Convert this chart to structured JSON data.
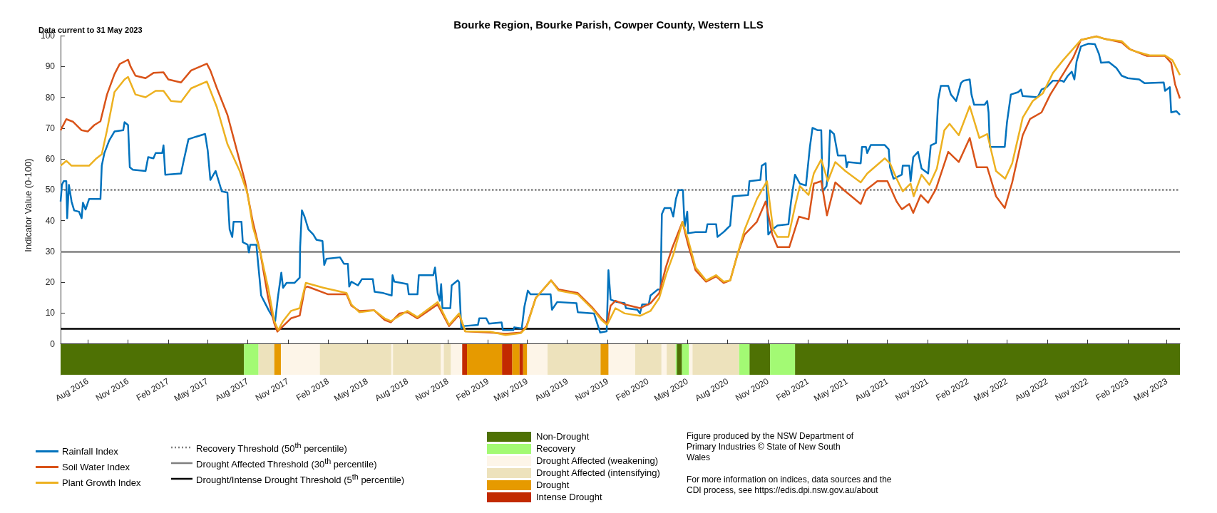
{
  "chart_data": {
    "type": "line",
    "title": "Bourke Region, Bourke Parish, Cowper County, Western LLS",
    "subtitle": "Data current to 31 May 2023",
    "ylabel": "Indicator Value (0-100)",
    "xlim": [
      "2016-05-31",
      "2023-05-31"
    ],
    "xticks": [
      {
        "value": "2016-08-01",
        "label": "Aug 2016"
      },
      {
        "value": "2016-11-01",
        "label": "Nov 2016"
      },
      {
        "value": "2017-02-01",
        "label": "Feb 2017"
      },
      {
        "value": "2017-05-01",
        "label": "May 2017"
      },
      {
        "value": "2017-08-01",
        "label": "Aug 2017"
      },
      {
        "value": "2017-11-01",
        "label": "Nov 2017"
      },
      {
        "value": "2018-02-01",
        "label": "Feb 2018"
      },
      {
        "value": "2018-05-01",
        "label": "May 2018"
      },
      {
        "value": "2018-08-01",
        "label": "Aug 2018"
      },
      {
        "value": "2018-11-01",
        "label": "Nov 2018"
      },
      {
        "value": "2019-02-01",
        "label": "Feb 2019"
      },
      {
        "value": "2019-05-01",
        "label": "May 2019"
      },
      {
        "value": "2019-08-01",
        "label": "Aug 2019"
      },
      {
        "value": "2019-11-01",
        "label": "Nov 2019"
      },
      {
        "value": "2020-02-01",
        "label": "Feb 2020"
      },
      {
        "value": "2020-05-01",
        "label": "May 2020"
      },
      {
        "value": "2020-08-01",
        "label": "Aug 2020"
      },
      {
        "value": "2020-11-01",
        "label": "Nov 2020"
      },
      {
        "value": "2021-02-01",
        "label": "Feb 2021"
      },
      {
        "value": "2021-05-01",
        "label": "May 2021"
      },
      {
        "value": "2021-08-01",
        "label": "Aug 2021"
      },
      {
        "value": "2021-11-01",
        "label": "Nov 2021"
      },
      {
        "value": "2022-02-01",
        "label": "Feb 2022"
      },
      {
        "value": "2022-05-01",
        "label": "May 2022"
      },
      {
        "value": "2022-08-01",
        "label": "Aug 2022"
      },
      {
        "value": "2022-11-01",
        "label": "Nov 2022"
      },
      {
        "value": "2023-02-01",
        "label": "Feb 2023"
      },
      {
        "value": "2023-05-01",
        "label": "May 2023"
      }
    ],
    "ylim": [
      -10,
      100
    ],
    "yticks": [
      {
        "value": -5,
        "label": null
      },
      0,
      10,
      20,
      30,
      40,
      50,
      60,
      70,
      80,
      90,
      100
    ],
    "grid": false,
    "marker": "none",
    "legend": "bottom left",
    "series": [
      {
        "name": "Rainfall Index",
        "color": "#0072bd",
        "x": [
          "2016-05-31",
          "2016-06-03",
          "2016-06-07",
          "2016-06-13",
          "2016-06-15",
          "2016-06-19",
          "2016-06-25",
          "2016-07-01",
          "2016-07-12",
          "2016-07-18",
          "2016-07-21",
          "2016-07-27",
          "2016-08-04",
          "2016-08-30",
          "2016-09-02",
          "2016-09-08",
          "2016-09-19",
          "2016-10-01",
          "2016-10-21",
          "2016-10-24",
          "2016-11-01",
          "2016-11-05",
          "2016-11-12",
          "2016-12-11",
          "2016-12-17",
          "2016-12-29",
          "2017-01-03",
          "2017-01-18",
          "2017-01-21",
          "2017-01-25",
          "2017-03-02",
          "2017-03-08",
          "2017-03-19",
          "2017-04-05",
          "2017-04-26",
          "2017-05-02",
          "2017-05-08",
          "2017-05-20",
          "2017-06-03",
          "2017-06-16",
          "2017-06-21",
          "2017-06-27",
          "2017-06-30",
          "2017-07-18",
          "2017-07-21",
          "2017-08-01",
          "2017-08-04",
          "2017-08-07",
          "2017-08-21",
          "2017-09-01",
          "2017-09-10",
          "2017-09-19",
          "2017-10-03",
          "2017-10-09",
          "2017-10-17",
          "2017-10-21",
          "2017-10-29",
          "2017-11-16",
          "2017-11-28",
          "2017-11-29",
          "2017-12-03",
          "2017-12-09",
          "2017-12-18",
          "2017-12-29",
          "2018-01-05",
          "2018-01-19",
          "2018-01-23",
          "2018-01-28",
          "2018-02-28",
          "2018-03-09",
          "2018-03-18",
          "2018-03-21",
          "2018-03-26",
          "2018-04-10",
          "2018-04-19",
          "2018-05-14",
          "2018-05-18",
          "2018-06-07",
          "2018-06-26",
          "2018-06-28",
          "2018-07-02",
          "2018-08-01",
          "2018-08-04",
          "2018-08-24",
          "2018-08-27",
          "2018-09-29",
          "2018-10-03",
          "2018-10-09",
          "2018-10-14",
          "2018-10-17",
          "2018-10-20",
          "2018-11-07",
          "2018-11-10",
          "2018-11-24",
          "2018-11-27",
          "2018-12-02",
          "2018-12-08",
          "2019-01-09",
          "2019-01-12",
          "2019-01-28",
          "2019-02-03",
          "2019-03-04",
          "2019-03-07",
          "2019-03-31",
          "2019-04-02",
          "2019-04-19",
          "2019-04-25",
          "2019-05-03",
          "2019-05-09",
          "2019-06-24",
          "2019-06-27",
          "2019-07-09",
          "2019-08-22",
          "2019-08-25",
          "2019-10-01",
          "2019-10-15",
          "2019-10-30",
          "2019-11-03",
          "2019-11-08",
          "2019-11-22",
          "2019-12-10",
          "2019-12-13",
          "2020-01-08",
          "2020-01-14",
          "2020-01-19",
          "2020-02-03",
          "2020-02-07",
          "2020-02-24",
          "2020-03-01",
          "2020-03-04",
          "2020-03-10",
          "2020-03-24",
          "2020-03-30",
          "2020-04-05",
          "2020-04-11",
          "2020-04-21",
          "2020-04-25",
          "2020-05-01",
          "2020-05-03",
          "2020-05-20",
          "2020-06-13",
          "2020-06-16",
          "2020-07-06",
          "2020-07-09",
          "2020-07-23",
          "2020-08-07",
          "2020-08-13",
          "2020-09-17",
          "2020-09-20",
          "2020-10-15",
          "2020-10-18",
          "2020-10-27",
          "2020-11-02",
          "2020-11-11",
          "2020-11-23",
          "2020-12-18",
          "2020-12-24",
          "2021-01-02",
          "2021-01-13",
          "2021-01-27",
          "2021-02-05",
          "2021-02-11",
          "2021-02-23",
          "2021-03-03",
          "2021-03-06",
          "2021-03-15",
          "2021-03-20",
          "2021-03-23",
          "2021-04-01",
          "2021-04-10",
          "2021-04-27",
          "2021-04-30",
          "2021-05-03",
          "2021-06-01",
          "2021-06-04",
          "2021-06-13",
          "2021-06-16",
          "2021-06-24",
          "2021-07-26",
          "2021-08-04",
          "2021-08-07",
          "2021-08-15",
          "2021-09-03",
          "2021-09-05",
          "2021-09-20",
          "2021-09-23",
          "2021-09-29",
          "2021-10-10",
          "2021-10-18",
          "2021-11-02",
          "2021-11-08",
          "2021-11-20",
          "2021-11-25",
          "2021-12-01",
          "2021-12-18",
          "2021-12-24",
          "2022-01-05",
          "2022-01-16",
          "2022-01-22",
          "2022-02-05",
          "2022-02-09",
          "2022-02-15",
          "2022-03-11",
          "2022-03-17",
          "2022-03-20",
          "2022-03-23",
          "2022-04-26",
          "2022-05-01",
          "2022-05-10",
          "2022-05-27",
          "2022-06-02",
          "2022-06-06",
          "2022-07-10",
          "2022-07-19",
          "2022-07-31",
          "2022-08-14",
          "2022-09-03",
          "2022-09-08",
          "2022-09-17",
          "2022-09-26",
          "2022-10-02",
          "2022-10-07",
          "2022-10-17",
          "2022-11-03",
          "2022-11-18",
          "2022-11-27",
          "2022-12-02",
          "2022-12-20",
          "2023-01-06",
          "2023-01-18",
          "2023-02-01",
          "2023-02-27",
          "2023-03-11",
          "2023-04-24",
          "2023-04-27",
          "2023-05-08",
          "2023-05-11",
          "2023-05-23",
          "2023-05-31"
        ],
        "values": [
          46.2,
          51.6,
          52.8,
          52.8,
          40.8,
          51.6,
          46.2,
          43.3,
          42.9,
          40.8,
          45.8,
          43.6,
          47,
          47,
          57.8,
          61.9,
          66,
          68.9,
          69.3,
          71.9,
          71,
          57.3,
          56.5,
          56.1,
          60.6,
          60.2,
          61.9,
          61.9,
          64.4,
          54.9,
          55.3,
          59.4,
          66.4,
          67.2,
          68.1,
          62.7,
          53.2,
          56.1,
          49.5,
          49.1,
          37.1,
          34.7,
          39.6,
          39.6,
          33,
          32.2,
          29.7,
          32.2,
          32.2,
          15.7,
          13.2,
          10.7,
          7.4,
          14.9,
          23.1,
          18.2,
          19.8,
          19.8,
          21.5,
          31.4,
          43.3,
          41.3,
          37.1,
          35.5,
          33.8,
          33.4,
          25.6,
          27.6,
          28.1,
          26,
          26,
          18.6,
          20.2,
          19,
          21,
          21,
          16.9,
          16.5,
          15.7,
          22.3,
          20.2,
          19.4,
          16.1,
          16.1,
          22.3,
          22.3,
          24.8,
          16.5,
          14,
          19.4,
          11.6,
          11.6,
          19,
          20.6,
          20,
          5,
          5.8,
          6.2,
          8.3,
          8.3,
          6.6,
          7,
          4.5,
          4.5,
          5.4,
          5,
          12,
          17.3,
          16.1,
          16.1,
          11.1,
          13.6,
          13.2,
          10.3,
          9.9,
          3.7,
          4.1,
          23.9,
          14.4,
          13.6,
          13.2,
          11.6,
          11.1,
          9.9,
          12.8,
          12.8,
          15.7,
          17.7,
          17.7,
          42.1,
          44.1,
          44.1,
          41.3,
          47,
          49.9,
          49.9,
          38,
          42.9,
          35.9,
          36.3,
          36.3,
          38.8,
          38.8,
          34.7,
          36.3,
          38.4,
          47.9,
          48.3,
          52.8,
          53.2,
          57.8,
          58.6,
          35.5,
          37.1,
          38.4,
          38.8,
          46.2,
          54.9,
          52,
          51.4,
          63.9,
          70.1,
          69.3,
          69.3,
          49.5,
          51.2,
          57.8,
          69.3,
          68.1,
          61.1,
          61.1,
          57.3,
          59,
          58.6,
          63.9,
          63.9,
          61.9,
          64.5,
          64.5,
          63.1,
          57.3,
          53.6,
          54.9,
          57.8,
          57.8,
          52.8,
          60.6,
          62.3,
          56.9,
          55.3,
          64.4,
          65.2,
          79.2,
          83.7,
          83.7,
          80.9,
          78.8,
          84.6,
          85.4,
          85.8,
          80.9,
          77.6,
          77.6,
          78.8,
          75.1,
          63.9,
          63.9,
          71.8,
          80.9,
          81.7,
          82.5,
          80.4,
          80,
          82.5,
          83.3,
          85.4,
          85.4,
          85,
          87,
          88.3,
          85.8,
          91.6,
          96.5,
          97.4,
          97.2,
          94.1,
          91.2,
          91.4,
          89.5,
          87,
          86.2,
          85.8,
          84.6,
          84.8,
          82.1,
          83.3,
          75.1,
          75.5,
          74.3
        ]
      },
      {
        "name": "Soil Water Index",
        "color": "#d95319",
        "x": [
          "2016-05-31",
          "2016-06-13",
          "2016-06-28",
          "2016-07-18",
          "2016-08-01",
          "2016-08-16",
          "2016-08-30",
          "2016-09-14",
          "2016-10-01",
          "2016-10-13",
          "2016-11-01",
          "2016-11-07",
          "2016-11-18",
          "2016-12-11",
          "2016-12-29",
          "2017-01-21",
          "2017-02-01",
          "2017-03-02",
          "2017-03-25",
          "2017-04-30",
          "2017-05-08",
          "2017-05-23",
          "2017-06-16",
          "2017-07-03",
          "2017-07-26",
          "2017-08-13",
          "2017-08-30",
          "2017-09-17",
          "2017-10-01",
          "2017-10-08",
          "2017-10-21",
          "2017-11-08",
          "2017-11-28",
          "2017-12-10",
          "2017-12-16",
          "2018-02-01",
          "2018-03-15",
          "2018-03-26",
          "2018-04-13",
          "2018-05-17",
          "2018-06-10",
          "2018-06-24",
          "2018-07-14",
          "2018-08-01",
          "2018-08-24",
          "2018-10-09",
          "2018-11-04",
          "2018-11-27",
          "2018-12-11",
          "2019-02-06",
          "2019-03-13",
          "2019-04-17",
          "2019-04-30",
          "2019-05-21",
          "2019-06-25",
          "2019-07-12",
          "2019-08-25",
          "2019-09-26",
          "2019-10-18",
          "2019-10-31",
          "2019-11-08",
          "2019-11-19",
          "2019-12-10",
          "2020-01-14",
          "2020-02-07",
          "2020-02-27",
          "2020-03-13",
          "2020-03-27",
          "2020-04-20",
          "2020-05-03",
          "2020-05-20",
          "2020-06-13",
          "2020-07-06",
          "2020-07-23",
          "2020-08-07",
          "2020-08-25",
          "2020-09-09",
          "2020-10-07",
          "2020-10-27",
          "2020-11-11",
          "2020-11-23",
          "2020-12-20",
          "2021-01-11",
          "2021-02-02",
          "2021-02-14",
          "2021-03-03",
          "2021-03-16",
          "2021-04-04",
          "2021-04-27",
          "2021-06-01",
          "2021-06-13",
          "2021-07-09",
          "2021-08-01",
          "2021-08-22",
          "2021-09-03",
          "2021-09-20",
          "2021-09-29",
          "2021-10-16",
          "2021-11-02",
          "2021-11-20",
          "2021-12-18",
          "2022-01-11",
          "2022-02-05",
          "2022-02-21",
          "2022-03-17",
          "2022-04-06",
          "2022-04-26",
          "2022-05-13",
          "2022-06-06",
          "2022-06-23",
          "2022-07-19",
          "2022-08-08",
          "2022-09-06",
          "2022-09-29",
          "2022-10-17",
          "2022-11-21",
          "2022-12-09",
          "2023-01-18",
          "2023-02-04",
          "2023-03-17",
          "2023-04-27",
          "2023-05-11",
          "2023-05-20",
          "2023-05-31"
        ],
        "values": [
          69.3,
          72.9,
          72.1,
          69.3,
          68.9,
          71,
          72.2,
          80.9,
          87.5,
          90.8,
          92.2,
          89.9,
          87,
          86.2,
          87.9,
          88.1,
          85.8,
          84.8,
          88.7,
          90.9,
          88.7,
          82.9,
          74.3,
          65.2,
          52.8,
          39.6,
          29.7,
          14.9,
          6.6,
          4,
          5.8,
          8.3,
          9.2,
          18.2,
          18.6,
          16.1,
          16.1,
          12.4,
          10.7,
          10.9,
          7.8,
          7,
          9.9,
          10.3,
          8.3,
          12.8,
          5.8,
          9.5,
          4.1,
          3.7,
          3.3,
          3.7,
          5.8,
          14.9,
          20.6,
          17.7,
          16.5,
          12,
          8.3,
          6.6,
          12.4,
          14,
          12.8,
          11.6,
          13.2,
          16.5,
          24.8,
          30.9,
          39.6,
          32.2,
          23.9,
          20.2,
          21.9,
          19.8,
          20.6,
          29.7,
          35.5,
          39.6,
          46.2,
          35.5,
          31.4,
          31.4,
          41.3,
          40.4,
          52,
          52.8,
          41.7,
          52.4,
          49.5,
          45.4,
          49.9,
          52.8,
          52.8,
          46.2,
          43.7,
          45.4,
          42.5,
          48.3,
          45.8,
          50.3,
          62.3,
          59,
          66.8,
          57.3,
          57.3,
          47.9,
          44.1,
          52.4,
          67.7,
          73,
          75.1,
          80.9,
          87.5,
          92.8,
          98.6,
          99.8,
          99,
          97.8,
          95.7,
          93.4,
          93.4,
          91.2,
          84.2,
          79.6
        ]
      },
      {
        "name": "Plant Growth Index",
        "color": "#edb120",
        "x": [
          "2016-05-31",
          "2016-06-13",
          "2016-06-25",
          "2016-08-04",
          "2016-08-21",
          "2016-09-02",
          "2016-09-14",
          "2016-10-01",
          "2016-10-24",
          "2016-11-01",
          "2016-11-18",
          "2016-12-11",
          "2017-01-03",
          "2017-01-21",
          "2017-02-07",
          "2017-03-02",
          "2017-03-25",
          "2017-04-30",
          "2017-05-23",
          "2017-06-16",
          "2017-07-14",
          "2017-08-01",
          "2017-08-13",
          "2017-08-30",
          "2017-09-17",
          "2017-10-01",
          "2017-10-10",
          "2017-10-21",
          "2017-11-08",
          "2017-11-28",
          "2017-12-12",
          "2018-01-22",
          "2018-03-15",
          "2018-03-26",
          "2018-04-13",
          "2018-05-17",
          "2018-06-10",
          "2018-06-24",
          "2018-08-01",
          "2018-08-24",
          "2018-10-09",
          "2018-11-04",
          "2018-11-27",
          "2018-12-11",
          "2019-02-06",
          "2019-03-13",
          "2019-04-17",
          "2019-04-30",
          "2019-05-21",
          "2019-06-25",
          "2019-07-12",
          "2019-08-25",
          "2019-09-26",
          "2019-10-18",
          "2019-10-31",
          "2019-11-19",
          "2019-12-10",
          "2020-01-14",
          "2020-02-07",
          "2020-02-27",
          "2020-03-15",
          "2020-03-30",
          "2020-04-20",
          "2020-05-03",
          "2020-05-20",
          "2020-06-13",
          "2020-07-06",
          "2020-07-23",
          "2020-08-07",
          "2020-08-25",
          "2020-09-09",
          "2020-10-07",
          "2020-10-30",
          "2020-11-13",
          "2020-11-23",
          "2020-12-18",
          "2021-01-02",
          "2021-01-13",
          "2021-02-02",
          "2021-02-14",
          "2021-03-03",
          "2021-03-18",
          "2021-04-04",
          "2021-04-27",
          "2021-06-01",
          "2021-06-16",
          "2021-07-26",
          "2021-08-07",
          "2021-08-22",
          "2021-09-05",
          "2021-09-23",
          "2021-09-30",
          "2021-10-18",
          "2021-11-05",
          "2021-11-22",
          "2021-12-09",
          "2021-12-21",
          "2022-01-11",
          "2022-02-05",
          "2022-02-27",
          "2022-03-17",
          "2022-04-06",
          "2022-04-27",
          "2022-05-13",
          "2022-06-06",
          "2022-06-29",
          "2022-07-22",
          "2022-08-14",
          "2022-09-06",
          "2022-09-29",
          "2022-10-17",
          "2022-11-21",
          "2022-12-14",
          "2023-01-18",
          "2023-02-09",
          "2023-03-23",
          "2023-04-27",
          "2023-05-14",
          "2023-05-31"
        ],
        "values": [
          57.8,
          59.4,
          57.8,
          57.8,
          60.2,
          61.5,
          69.3,
          81.7,
          85.8,
          86.6,
          80.9,
          80,
          82.1,
          82.1,
          78.8,
          78.5,
          82.9,
          85.1,
          76.7,
          64.8,
          56.1,
          48.7,
          38,
          29.7,
          18.2,
          7.4,
          4.5,
          7.4,
          10.7,
          11.6,
          19.8,
          18.2,
          16.5,
          12.8,
          10.3,
          10.9,
          8.3,
          7.4,
          10.7,
          8.7,
          13.6,
          6.2,
          9.9,
          4.1,
          4,
          2.9,
          3.5,
          5.4,
          14.9,
          20.6,
          17.3,
          16.1,
          11.6,
          7.8,
          6.2,
          11.6,
          9.9,
          9.1,
          10.7,
          14.9,
          23.1,
          28.9,
          39.6,
          33.8,
          24.8,
          20.6,
          22.3,
          20.2,
          20.6,
          29.7,
          37.1,
          47,
          52.8,
          37.1,
          34.7,
          34.7,
          44.6,
          51.2,
          48.3,
          55.3,
          59.8,
          52.8,
          59,
          56.1,
          52.4,
          55.3,
          60.2,
          58.6,
          53.6,
          49.5,
          52,
          47.9,
          54.9,
          51.6,
          56.9,
          69.3,
          71.4,
          67.7,
          77.1,
          66.8,
          68.1,
          56.1,
          53.6,
          58.6,
          73.4,
          78.8,
          81.3,
          87.9,
          92,
          95.7,
          98.6,
          99.7,
          98.8,
          98.2,
          95.3,
          93.6,
          93.6,
          92,
          87.2
        ]
      }
    ],
    "ref_lines": [
      {
        "axis": "y",
        "value": 50,
        "label": "Recovery Threshold (50$^{th}$ percentile)",
        "color": "#808080",
        "line_style": "dotted"
      },
      {
        "axis": "y",
        "value": 30,
        "label": "Drought Affected Threshold (30$^{th}$ percentile)",
        "color": "#808080",
        "line_style": "solid"
      },
      {
        "axis": "y",
        "value": 5,
        "label": "Drought/Intense Drought Threshold (5$^{th}$ percentile)",
        "color": "#000000",
        "line_style": "solid"
      }
    ],
    "bands": [
      {
        "axis": "x",
        "from": "2016-05-31",
        "to": "2017-07-24",
        "label": "Non-Drought",
        "color": "#4e7104"
      },
      {
        "axis": "x",
        "from": "2020-04-07",
        "to": "2020-04-19",
        "color": "#4e7104"
      },
      {
        "axis": "x",
        "from": "2020-09-20",
        "to": "2020-11-06",
        "color": "#4e7104"
      },
      {
        "axis": "x",
        "from": "2021-01-02",
        "to": "2023-05-31",
        "color": "#4e7104"
      },
      {
        "axis": "x",
        "from": "2017-07-24",
        "to": "2017-08-26",
        "label": "Recovery",
        "color": "#a3fa74"
      },
      {
        "axis": "x",
        "from": "2020-04-04",
        "to": "2020-04-07",
        "color": "#a3fa74"
      },
      {
        "axis": "x",
        "from": "2020-04-19",
        "to": "2020-05-05",
        "color": "#a3fa74"
      },
      {
        "axis": "x",
        "from": "2020-08-27",
        "to": "2020-09-20",
        "color": "#a3fa74"
      },
      {
        "axis": "x",
        "from": "2020-11-06",
        "to": "2021-01-02",
        "color": "#a3fa74"
      },
      {
        "axis": "x",
        "from": "2017-10-16",
        "to": "2018-01-13",
        "label": "Drought Affected (weakening)",
        "color": "#fdf5e8"
      },
      {
        "axis": "x",
        "from": "2018-06-25",
        "to": "2018-06-29",
        "color": "#fdf5e8"
      },
      {
        "axis": "x",
        "from": "2018-10-16",
        "to": "2018-10-23",
        "color": "#fdf5e8"
      },
      {
        "axis": "x",
        "from": "2018-11-08",
        "to": "2018-12-04",
        "color": "#fdf5e8"
      },
      {
        "axis": "x",
        "from": "2019-05-01",
        "to": "2019-06-17",
        "color": "#fdf5e8"
      },
      {
        "axis": "x",
        "from": "2019-11-03",
        "to": "2020-01-03",
        "color": "#fdf5e8"
      },
      {
        "axis": "x",
        "from": "2020-03-03",
        "to": "2020-03-15",
        "color": "#fdf5e8"
      },
      {
        "axis": "x",
        "from": "2020-05-05",
        "to": "2020-05-13",
        "color": "#fdf5e8"
      },
      {
        "axis": "x",
        "from": "2017-08-26",
        "to": "2017-10-01",
        "label": "Drought Affected (intensifying)",
        "color": "#ede2bc"
      },
      {
        "axis": "x",
        "from": "2018-01-13",
        "to": "2018-06-25",
        "color": "#ede2bc"
      },
      {
        "axis": "x",
        "from": "2018-06-29",
        "to": "2018-10-16",
        "color": "#ede2bc"
      },
      {
        "axis": "x",
        "from": "2018-10-23",
        "to": "2018-11-08",
        "color": "#ede2bc"
      },
      {
        "axis": "x",
        "from": "2019-06-17",
        "to": "2019-10-16",
        "color": "#ede2bc"
      },
      {
        "axis": "x",
        "from": "2020-01-03",
        "to": "2020-03-03",
        "color": "#ede2bc"
      },
      {
        "axis": "x",
        "from": "2020-03-15",
        "to": "2020-04-04",
        "color": "#ede2bc"
      },
      {
        "axis": "x",
        "from": "2020-05-13",
        "to": "2020-08-27",
        "color": "#ede2bc"
      },
      {
        "axis": "x",
        "from": "2017-10-01",
        "to": "2017-10-16",
        "label": "Drought",
        "color": "#e69a00"
      },
      {
        "axis": "x",
        "from": "2018-12-15",
        "to": "2019-03-05",
        "color": "#e69a00"
      },
      {
        "axis": "x",
        "from": "2019-03-28",
        "to": "2019-04-14",
        "color": "#e69a00"
      },
      {
        "axis": "x",
        "from": "2019-04-22",
        "to": "2019-05-01",
        "color": "#e69a00"
      },
      {
        "axis": "x",
        "from": "2019-10-16",
        "to": "2019-11-03",
        "color": "#e69a00"
      },
      {
        "axis": "x",
        "from": "2018-12-04",
        "to": "2018-12-15",
        "label": "Intense Drought",
        "color": "#c22a00"
      },
      {
        "axis": "x",
        "from": "2019-03-05",
        "to": "2019-03-28",
        "color": "#c22a00"
      },
      {
        "axis": "x",
        "from": "2019-04-14",
        "to": "2019-04-22",
        "color": "#c22a00"
      }
    ],
    "annotations": [
      "Figure produced by the NSW Department of Primary Industries © State of New South Wales",
      "For more information on indices, data sources and the CDI process, see https://edis.dpi.nsw.gov.au/about"
    ]
  }
}
